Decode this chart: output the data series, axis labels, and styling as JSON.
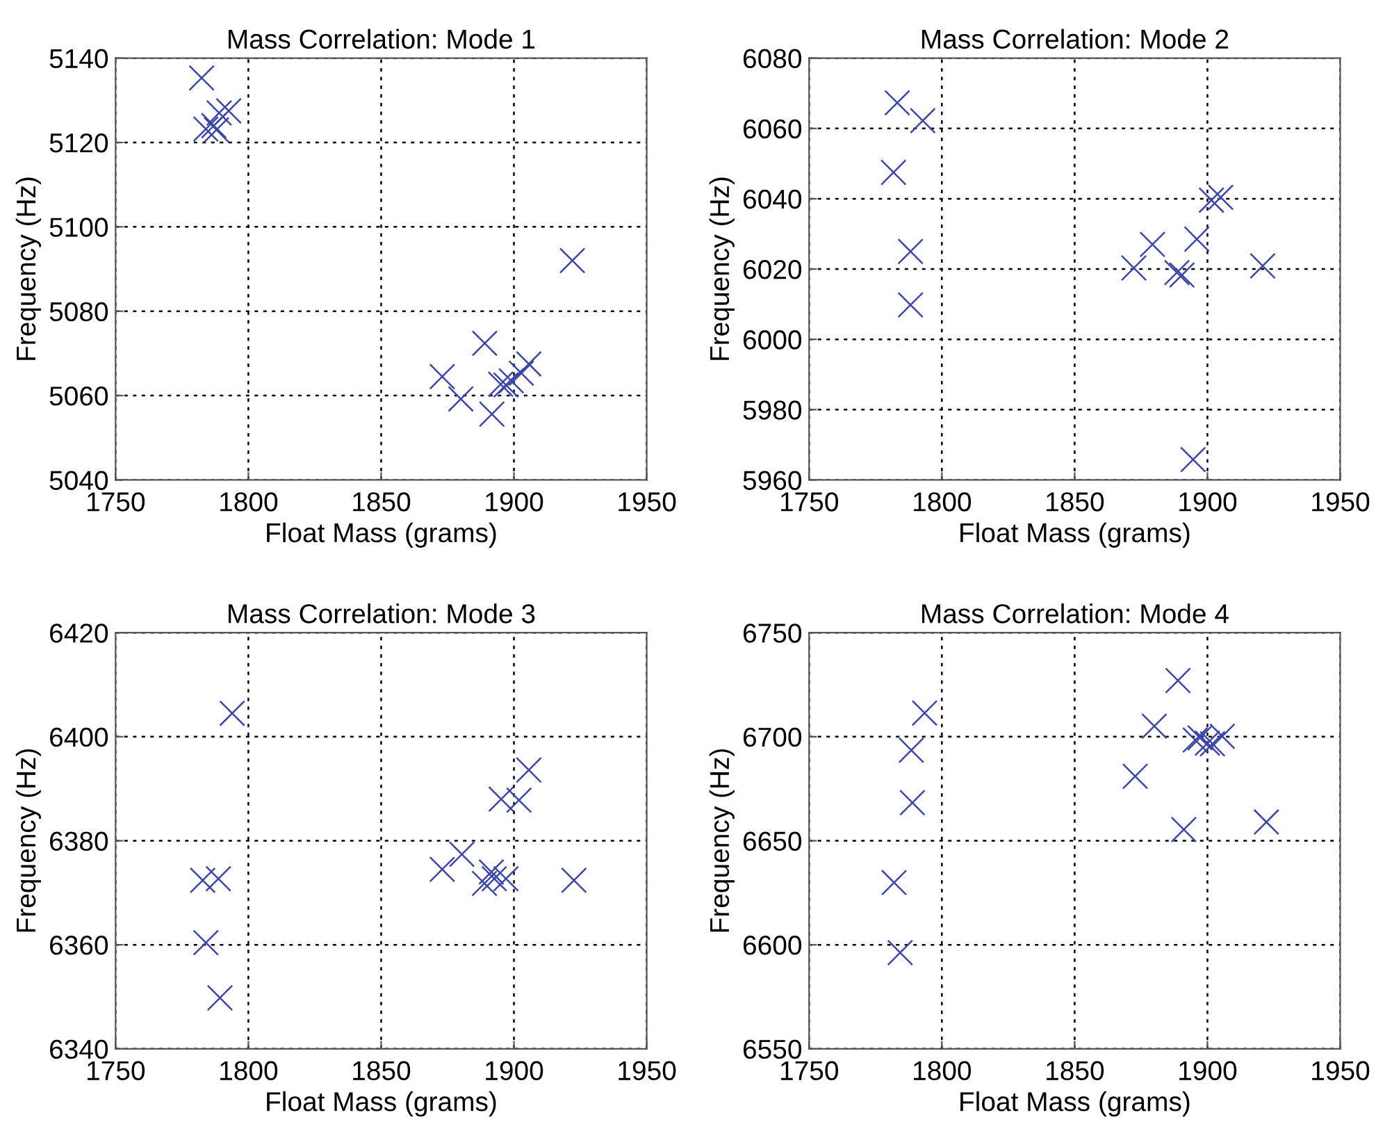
{
  "chart_data": [
    {
      "type": "scatter",
      "title": "Mass Correlation: Mode 1",
      "xlabel": "Float Mass (grams)",
      "ylabel": "Frequency (Hz)",
      "xlim": [
        1750,
        1950
      ],
      "xticks": [
        1750,
        1800,
        1850,
        1900,
        1950
      ],
      "ylim": [
        5040,
        5140
      ],
      "yticks": [
        5040,
        5060,
        5080,
        5100,
        5120,
        5140
      ],
      "grid": true,
      "marker": "cross",
      "series": [
        {
          "color": "#3c46a8",
          "x": [
            1782.4,
            1784,
            1787,
            1788,
            1789,
            1792.6,
            1922,
            1889,
            1873,
            1880,
            1891.7,
            1895,
            1897,
            1899,
            1902.8,
            1905.6
          ],
          "values": [
            5135.3,
            5123.2,
            5124,
            5123,
            5127,
            5127.5,
            5092,
            5072.4,
            5064.5,
            5059.2,
            5055.6,
            5062.7,
            5062.5,
            5063.5,
            5065.3,
            5067.5
          ]
        }
      ]
    },
    {
      "type": "scatter",
      "title": "Mass Correlation: Mode 2",
      "xlabel": "Float Mass (grams)",
      "ylabel": "Frequency (Hz)",
      "xlim": [
        1750,
        1950
      ],
      "xticks": [
        1750,
        1800,
        1850,
        1900,
        1950
      ],
      "ylim": [
        5960,
        6080
      ],
      "yticks": [
        5960,
        5980,
        6000,
        6020,
        6040,
        6060,
        6080
      ],
      "grid": true,
      "marker": "cross",
      "series": [
        {
          "color": "#3c46a8",
          "x": [
            1783.2,
            1792.8,
            1781.8,
            1788.2,
            1788.2,
            1872.3,
            1879.3,
            1888.5,
            1890.4,
            1896,
            1901.5,
            1905,
            1920.8,
            1894.6
          ],
          "values": [
            6067.3,
            6062.2,
            6047.5,
            6025,
            6009.8,
            6020.3,
            6027,
            6019,
            6018.3,
            6028.5,
            6039.6,
            6040.4,
            6020.9,
            5965.8
          ]
        }
      ]
    },
    {
      "type": "scatter",
      "title": "Mass Correlation: Mode 3",
      "xlabel": "Float Mass (grams)",
      "ylabel": "Frequency (Hz)",
      "xlim": [
        1750,
        1950
      ],
      "xticks": [
        1750,
        1800,
        1850,
        1900,
        1950
      ],
      "ylim": [
        6340,
        6420
      ],
      "yticks": [
        6340,
        6360,
        6380,
        6400,
        6420
      ],
      "grid": true,
      "marker": "cross",
      "series": [
        {
          "color": "#3c46a8",
          "x": [
            1793.9,
            1782.8,
            1788.7,
            1784,
            1789.3,
            1873,
            1880.4,
            1888.9,
            1891.5,
            1892.6,
            1897,
            1895.2,
            1901.9,
            1905.6,
            1922.6
          ],
          "values": [
            6404.5,
            6372.4,
            6372.7,
            6360.4,
            6349.8,
            6374.5,
            6377.4,
            6371.8,
            6374,
            6372.7,
            6372.7,
            6388,
            6387.8,
            6393.6,
            6372.4
          ]
        }
      ]
    },
    {
      "type": "scatter",
      "title": "Mass Correlation: Mode 4",
      "xlabel": "Float Mass (grams)",
      "ylabel": "Frequency (Hz)",
      "xlim": [
        1750,
        1950
      ],
      "xticks": [
        1750,
        1800,
        1850,
        1900,
        1950
      ],
      "ylim": [
        6550,
        6750
      ],
      "yticks": [
        6550,
        6600,
        6650,
        6700,
        6750
      ],
      "grid": true,
      "marker": "cross",
      "series": [
        {
          "color": "#3c46a8",
          "x": [
            1793.5,
            1788.5,
            1788.9,
            1782,
            1784.3,
            1888.9,
            1880,
            1872.8,
            1891.1,
            1922.2,
            1895.4,
            1897.2,
            1900,
            1901.9,
            1905.6
          ],
          "values": [
            6711.4,
            6693.5,
            6668.3,
            6629.9,
            6596.2,
            6727,
            6705.1,
            6681,
            6655.4,
            6659,
            6698.4,
            6699.5,
            6696.9,
            6696.6,
            6700.2
          ]
        }
      ]
    }
  ]
}
